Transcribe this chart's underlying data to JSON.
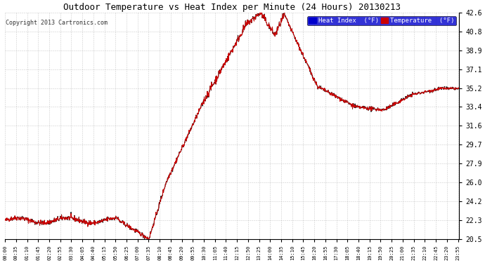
{
  "title": "Outdoor Temperature vs Heat Index per Minute (24 Hours) 20130213",
  "copyright": "Copyright 2013 Cartronics.com",
  "yticks": [
    20.5,
    22.3,
    24.2,
    26.0,
    27.9,
    29.7,
    31.6,
    33.4,
    35.2,
    37.1,
    38.9,
    40.8,
    42.6
  ],
  "ylim": [
    20.5,
    42.6
  ],
  "bg_color": "#ffffff",
  "plot_bg_color": "#ffffff",
  "grid_color": "#aaaaaa",
  "temp_color": "#cc0000",
  "heat_color": "#111111",
  "legend_heat_bg": "#0000cc",
  "legend_temp_bg": "#cc0000",
  "legend_heat_label": "Heat Index  (°F)",
  "legend_temp_label": "Temperature  (°F)",
  "xtick_step": 35,
  "n_minutes": 1440,
  "title_fontsize": 9,
  "copyright_fontsize": 6,
  "ytick_fontsize": 7,
  "xtick_fontsize": 5
}
